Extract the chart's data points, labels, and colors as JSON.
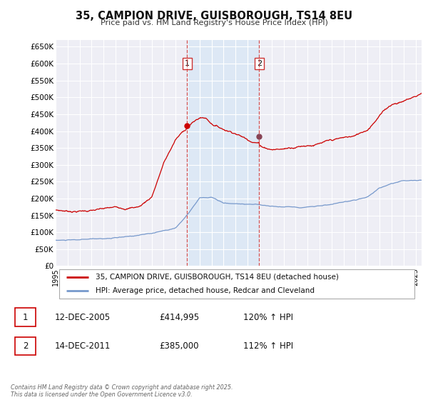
{
  "title": "35, CAMPION DRIVE, GUISBOROUGH, TS14 8EU",
  "subtitle": "Price paid vs. HM Land Registry's House Price Index (HPI)",
  "ylim": [
    0,
    670000
  ],
  "xlim_start": 1995.0,
  "xlim_end": 2025.5,
  "yticks": [
    0,
    50000,
    100000,
    150000,
    200000,
    250000,
    300000,
    350000,
    400000,
    450000,
    500000,
    550000,
    600000,
    650000
  ],
  "ytick_labels": [
    "£0",
    "£50K",
    "£100K",
    "£150K",
    "£200K",
    "£250K",
    "£300K",
    "£350K",
    "£400K",
    "£450K",
    "£500K",
    "£550K",
    "£600K",
    "£650K"
  ],
  "xticks": [
    1995,
    1996,
    1997,
    1998,
    1999,
    2000,
    2001,
    2002,
    2003,
    2004,
    2005,
    2006,
    2007,
    2008,
    2009,
    2010,
    2011,
    2012,
    2013,
    2014,
    2015,
    2016,
    2017,
    2018,
    2019,
    2020,
    2021,
    2022,
    2023,
    2024,
    2025
  ],
  "background_color": "#ffffff",
  "plot_bg_color": "#eeeef5",
  "grid_color": "#ffffff",
  "red_line_color": "#cc0000",
  "blue_line_color": "#7799cc",
  "sale1_x": 2005.96,
  "sale1_y": 414995,
  "sale2_x": 2011.96,
  "sale2_y": 385000,
  "vspan_color": "#dde8f5",
  "legend_line1": "35, CAMPION DRIVE, GUISBOROUGH, TS14 8EU (detached house)",
  "legend_line2": "HPI: Average price, detached house, Redcar and Cleveland",
  "sale1_label": "1",
  "sale1_date": "12-DEC-2005",
  "sale1_price": "£414,995",
  "sale1_hpi": "120% ↑ HPI",
  "sale2_label": "2",
  "sale2_date": "14-DEC-2011",
  "sale2_price": "£385,000",
  "sale2_hpi": "112% ↑ HPI",
  "footer": "Contains HM Land Registry data © Crown copyright and database right 2025.\nThis data is licensed under the Open Government Licence v3.0."
}
